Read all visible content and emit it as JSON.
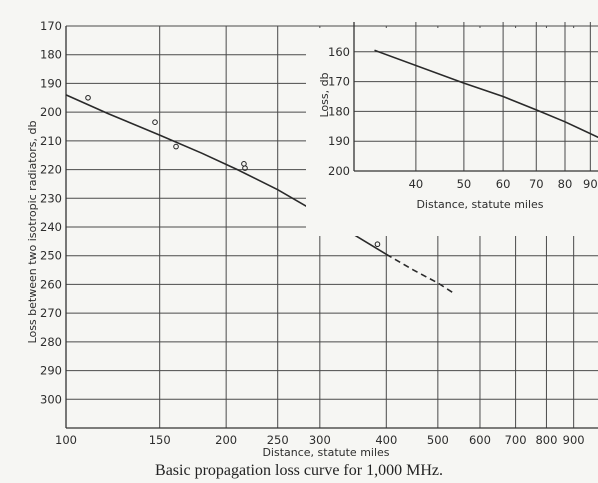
{
  "caption": "Basic propagation loss curve for 1,000 MHz.",
  "chart_data": [
    {
      "type": "line",
      "title": "",
      "xlabel": "Distance, statute miles",
      "ylabel": "Loss between two isotropic radiators, db",
      "x_scale": "log",
      "xlim": [
        100,
        1000
      ],
      "ylim": [
        170,
        310
      ],
      "y_inverted": true,
      "grid": true,
      "x_ticks": [
        100,
        150,
        200,
        250,
        300,
        400,
        500,
        600,
        700,
        800,
        900
      ],
      "x_tick_labels": [
        "100",
        "150",
        "200",
        "250",
        "300",
        "400",
        "500",
        "600",
        "700",
        "800",
        "900"
      ],
      "y_ticks": [
        170,
        180,
        190,
        200,
        210,
        220,
        230,
        240,
        250,
        260,
        270,
        280,
        290,
        300
      ],
      "y_tick_labels": [
        "170",
        "180",
        "190",
        "200",
        "210",
        "220",
        "230",
        "240",
        "250",
        "260",
        "270",
        "280",
        "290",
        "300"
      ],
      "series": [
        {
          "style": "solid",
          "x": [
            100,
            120,
            150,
            180,
            210,
            250,
            300,
            350,
            400
          ],
          "y": [
            194,
            200.5,
            208,
            214.3,
            220,
            227,
            235.5,
            243,
            249.5
          ]
        },
        {
          "style": "dashed",
          "x": [
            400,
            450,
            500,
            535
          ],
          "y": [
            249.5,
            255,
            259.5,
            263
          ]
        },
        {
          "style": "points",
          "x": [
            110,
            147,
            161,
            216,
            217,
            300,
            385
          ],
          "y": [
            195,
            203.5,
            212,
            218,
            219.5,
            231.5,
            246
          ]
        }
      ]
    },
    {
      "type": "line",
      "title": "",
      "xlabel": "Distance, statute miles",
      "ylabel": "Loss, db",
      "x_scale": "log",
      "xlim": [
        30,
        100
      ],
      "ylim": [
        150,
        200
      ],
      "y_inverted": true,
      "grid": true,
      "x_ticks": [
        40,
        50,
        60,
        70,
        80,
        90
      ],
      "x_tick_labels": [
        "40",
        "50",
        "60",
        "70",
        "80",
        "90"
      ],
      "y_ticks": [
        160,
        170,
        180,
        190,
        200
      ],
      "y_tick_labels": [
        "160",
        "170",
        "180",
        "190",
        "200"
      ],
      "series": [
        {
          "style": "solid",
          "x": [
            33,
            50,
            60,
            70,
            80,
            100
          ],
          "y": [
            159.5,
            170.5,
            175,
            179.5,
            183.5,
            191
          ]
        }
      ]
    }
  ]
}
